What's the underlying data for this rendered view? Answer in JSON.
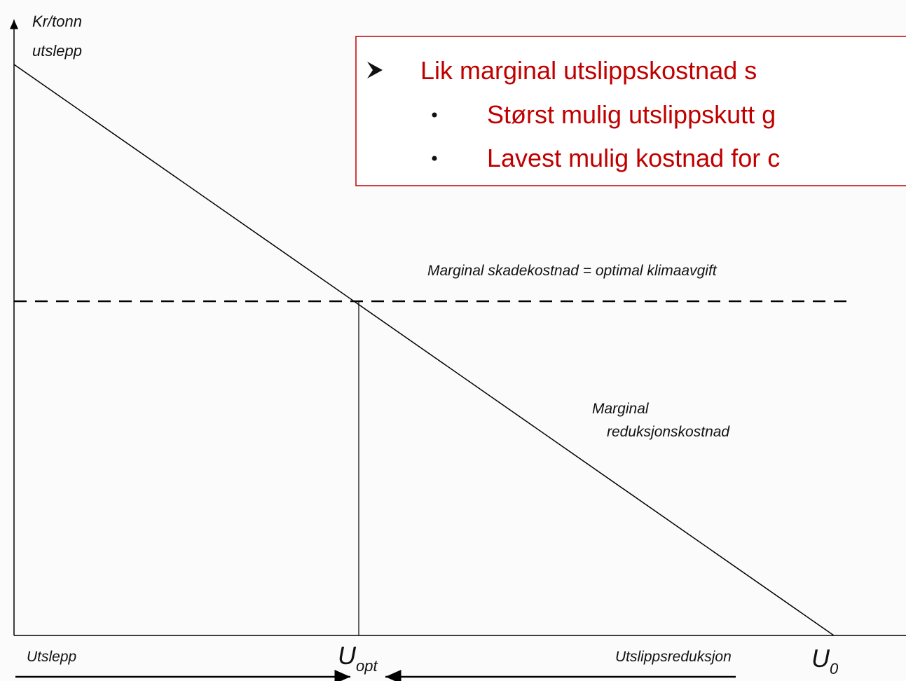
{
  "y_axis_label": [
    "Kr/tonn",
    "utslepp"
  ],
  "box": {
    "items": [
      "Lik marginal utslippskostnad s",
      "Størst mulig utslippskutt g",
      "Lavest mulig kostnad for c"
    ]
  },
  "damage_label": "Marginal skadekostnad = optimal klimaavgift",
  "curve_label": [
    "Marginal",
    "reduksjonskostnad"
  ],
  "x_left_label": "Utslepp",
  "x_right_label": "Utslippsreduksjon",
  "u_opt": {
    "main": "U",
    "sub": "opt"
  },
  "u_0": {
    "main": "U",
    "sub": "0"
  }
}
